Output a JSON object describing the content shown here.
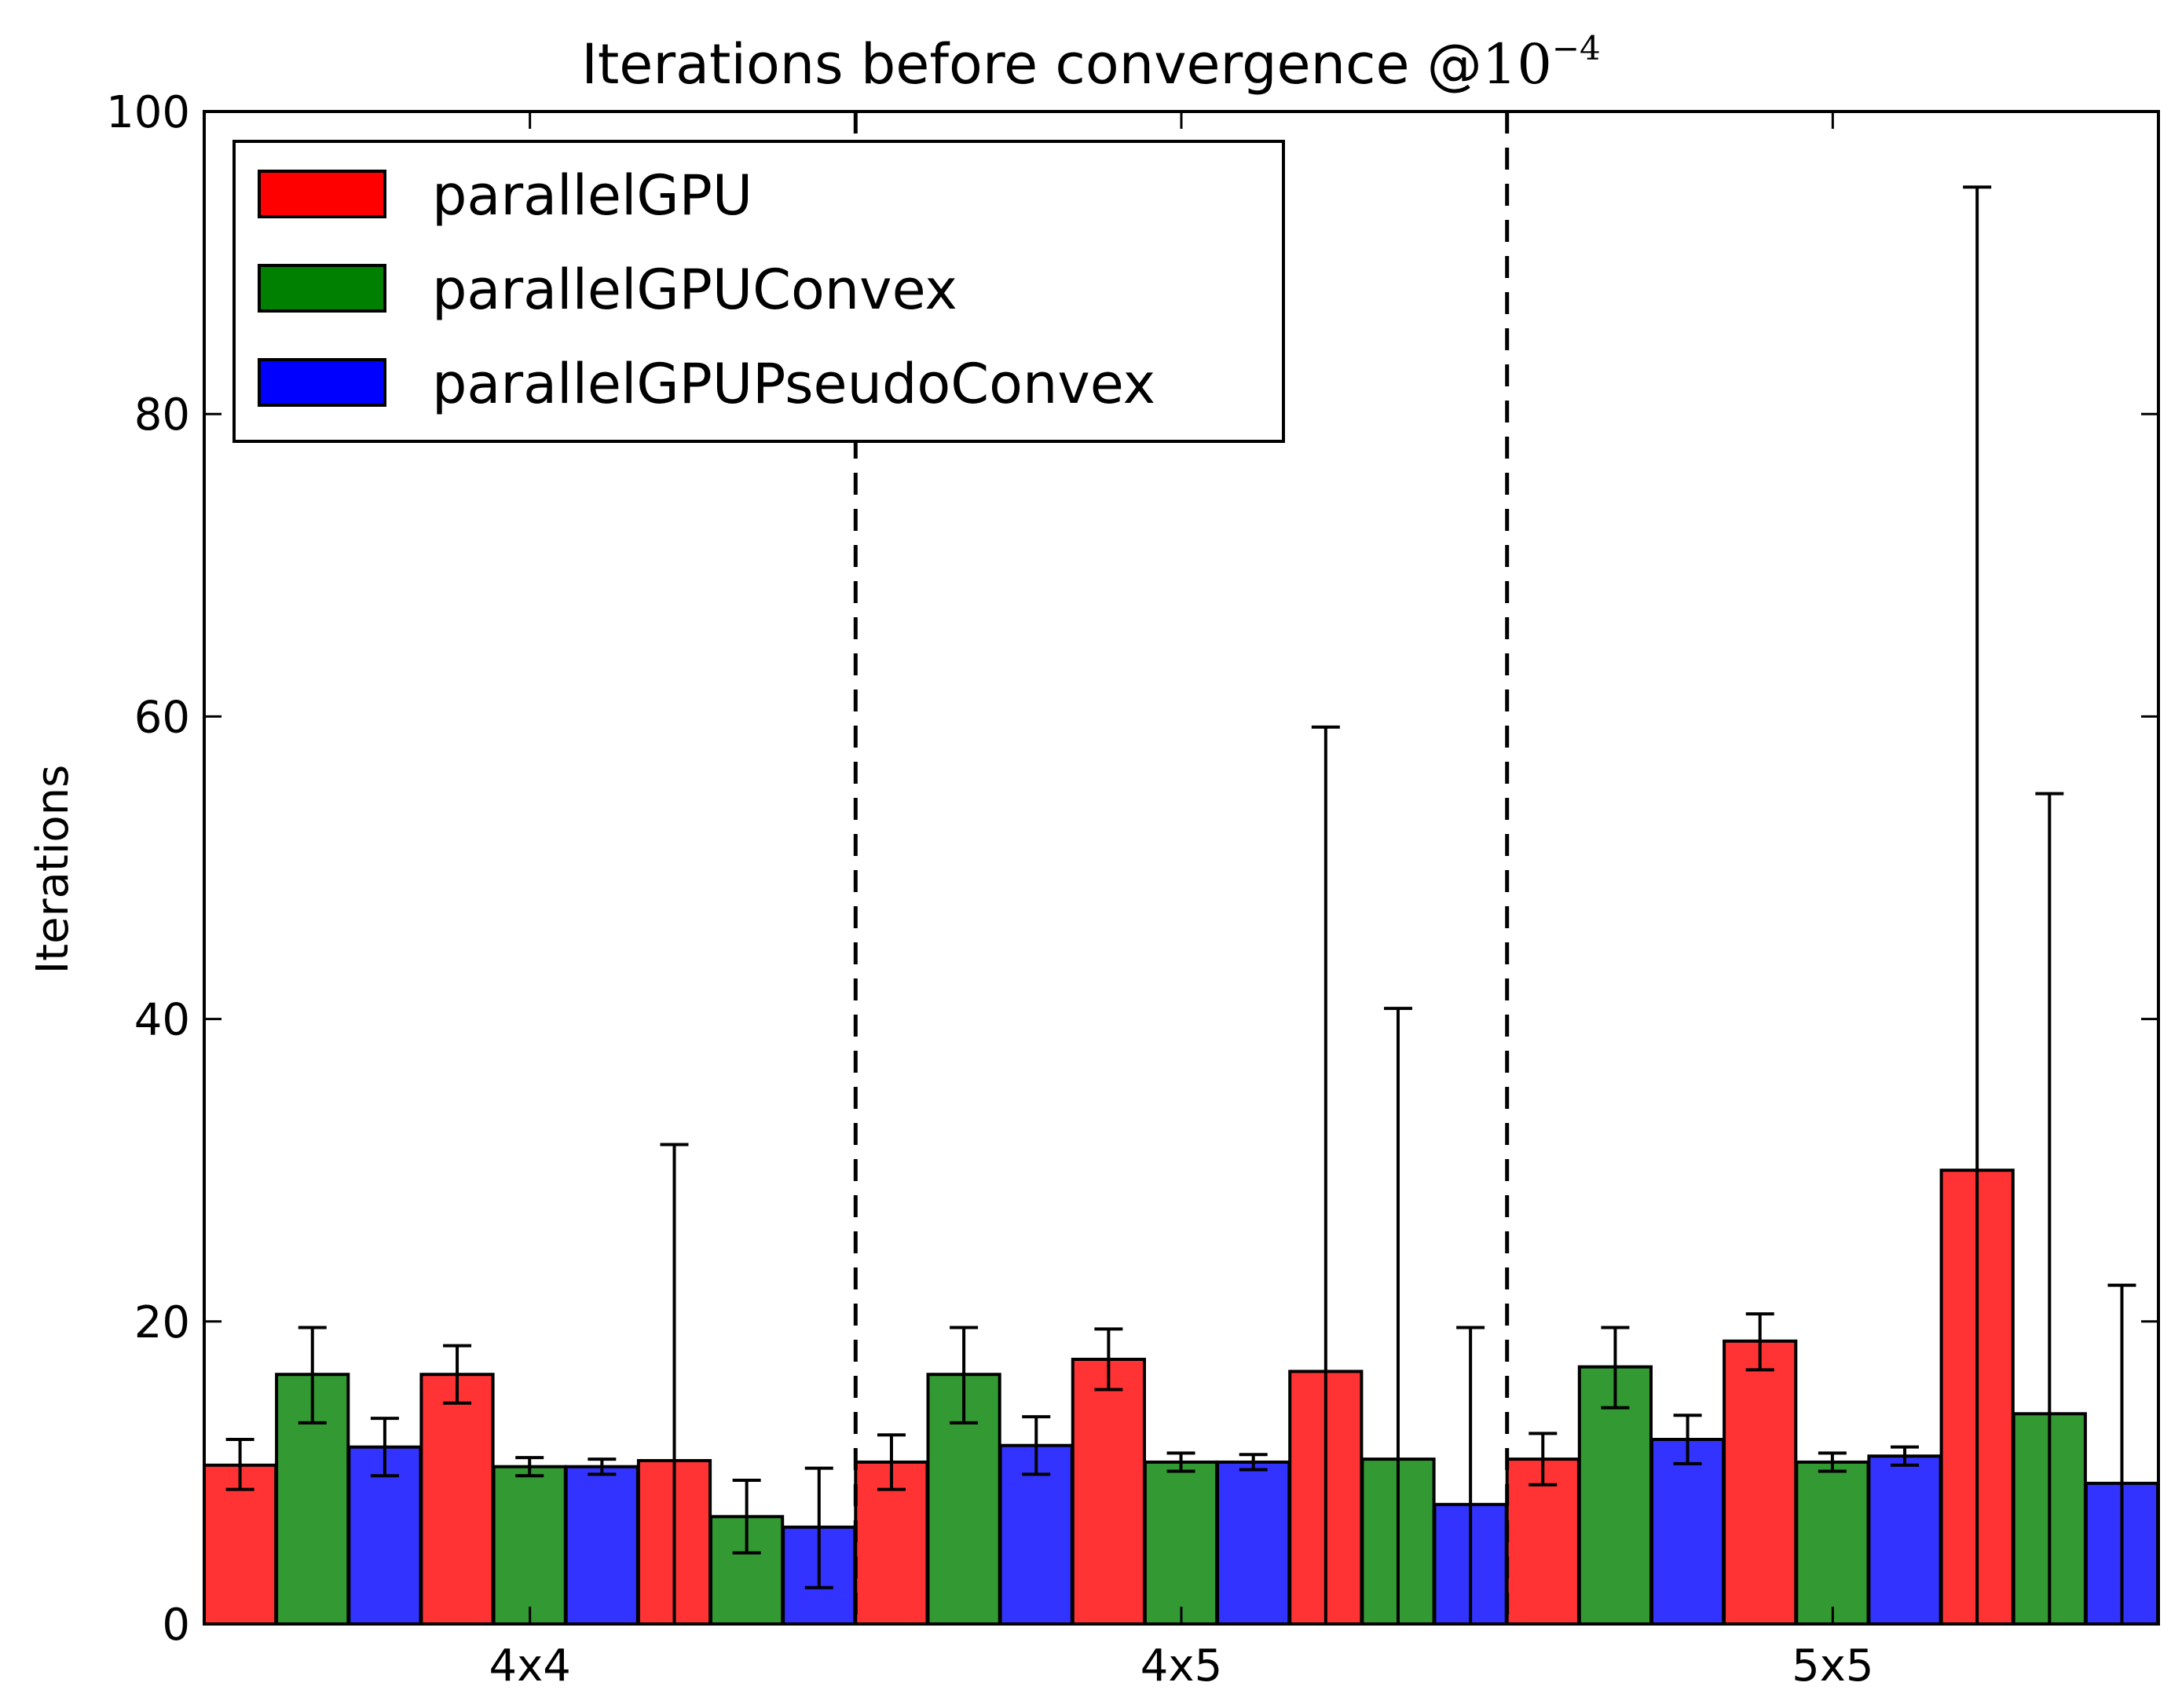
{
  "chart_data": {
    "type": "bar",
    "title": "Iterations before convergence @",
    "title_math": "10",
    "title_math_exp": "−4",
    "xlabel": "",
    "ylabel": "Iterations",
    "ylim": [
      0,
      100
    ],
    "yticks": [
      0,
      20,
      40,
      60,
      80,
      100
    ],
    "grid": false,
    "legend_position": "top-left",
    "groups": [
      "4x4",
      "4x5",
      "5x5"
    ],
    "subgroups_per_group": 3,
    "separators": "dashed vertical lines between groups",
    "series": [
      {
        "name": "parallelGPU",
        "color": "#ff3333",
        "legend_color": "#ff0000",
        "values": [
          10.5,
          16.5,
          10.8,
          10.7,
          17.5,
          16.7,
          10.9,
          18.7,
          30.0
        ],
        "err_low": [
          8.9,
          14.6,
          0.0,
          8.9,
          15.5,
          0.0,
          9.2,
          16.8,
          0.0
        ],
        "err_high": [
          12.2,
          18.4,
          31.7,
          12.5,
          19.5,
          59.3,
          12.6,
          20.5,
          95.0
        ]
      },
      {
        "name": "parallelGPUConvex",
        "color": "#339933",
        "legend_color": "#008000",
        "values": [
          16.5,
          10.4,
          7.1,
          16.5,
          10.7,
          10.9,
          17.0,
          10.7,
          13.9
        ],
        "err_low": [
          13.3,
          9.8,
          4.7,
          13.3,
          10.1,
          0.0,
          14.3,
          10.1,
          0.0
        ],
        "err_high": [
          19.6,
          11.0,
          9.5,
          19.6,
          11.3,
          40.7,
          19.6,
          11.3,
          54.9
        ]
      },
      {
        "name": "parallelGPUPseudoConvex",
        "color": "#3333ff",
        "legend_color": "#0000ff",
        "values": [
          11.7,
          10.4,
          6.4,
          11.8,
          10.7,
          7.9,
          12.2,
          11.1,
          9.3
        ],
        "err_low": [
          9.8,
          9.9,
          2.4,
          9.9,
          10.2,
          0.0,
          10.6,
          10.5,
          0.0
        ],
        "err_high": [
          13.6,
          10.9,
          10.3,
          13.7,
          11.2,
          19.6,
          13.8,
          11.7,
          22.4
        ]
      }
    ]
  }
}
